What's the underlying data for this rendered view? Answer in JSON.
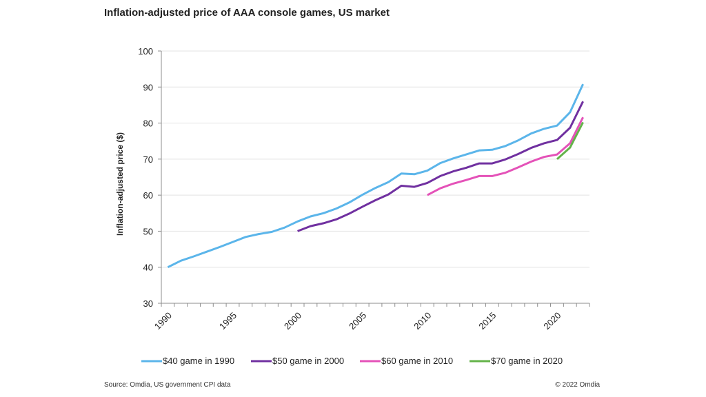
{
  "chart_data": {
    "type": "line",
    "title": "Inflation-adjusted price of AAA console games, US market",
    "ylabel": "Inflation-adjusted price ($)",
    "xlabel": "",
    "ylim": [
      30,
      100
    ],
    "yticks": [
      30,
      40,
      50,
      60,
      70,
      80,
      90,
      100
    ],
    "xlim": [
      1990,
      2022
    ],
    "xticks": [
      1990,
      1995,
      2000,
      2005,
      2010,
      2015,
      2020
    ],
    "grid": "horizontal",
    "legend": "bottom",
    "series": [
      {
        "name": "$40 game in 1990",
        "color": "#5bb5ea",
        "x": [
          1990,
          1991,
          1992,
          1993,
          1994,
          1995,
          1996,
          1997,
          1998,
          1999,
          2000,
          2001,
          2002,
          2003,
          2004,
          2005,
          2006,
          2007,
          2008,
          2009,
          2010,
          2011,
          2012,
          2013,
          2014,
          2015,
          2016,
          2017,
          2018,
          2019,
          2020,
          2021,
          2022
        ],
        "values": [
          40.0,
          41.8,
          43.0,
          44.3,
          45.6,
          47.0,
          48.4,
          49.2,
          49.8,
          51.0,
          52.7,
          54.1,
          55.0,
          56.3,
          58.0,
          60.1,
          62.0,
          63.6,
          66.0,
          65.8,
          66.8,
          68.9,
          70.2,
          71.3,
          72.4,
          72.6,
          73.6,
          75.2,
          77.1,
          78.4,
          79.3,
          83.0,
          90.8
        ]
      },
      {
        "name": "$50 game in 2000",
        "color": "#7030a0",
        "x": [
          2000,
          2001,
          2002,
          2003,
          2004,
          2005,
          2006,
          2007,
          2008,
          2009,
          2010,
          2011,
          2012,
          2013,
          2014,
          2015,
          2016,
          2017,
          2018,
          2019,
          2020,
          2021,
          2022
        ],
        "values": [
          50.0,
          51.4,
          52.2,
          53.3,
          54.9,
          56.8,
          58.6,
          60.2,
          62.6,
          62.3,
          63.4,
          65.3,
          66.6,
          67.6,
          68.8,
          68.8,
          69.9,
          71.4,
          73.1,
          74.4,
          75.3,
          78.7,
          86.0
        ]
      },
      {
        "name": "$60 game in 2010",
        "color": "#e452b8",
        "x": [
          2010,
          2011,
          2012,
          2013,
          2014,
          2015,
          2016,
          2017,
          2018,
          2019,
          2020,
          2021,
          2022
        ],
        "values": [
          60.0,
          61.9,
          63.2,
          64.2,
          65.3,
          65.3,
          66.2,
          67.7,
          69.3,
          70.6,
          71.3,
          74.4,
          81.6
        ]
      },
      {
        "name": "$70 game in 2020",
        "color": "#64b34a",
        "x": [
          2020,
          2021,
          2022
        ],
        "values": [
          70.0,
          73.2,
          80.2
        ]
      }
    ]
  },
  "footer": {
    "source": "Source: Omdia, US government CPI data",
    "copyright": "© 2022 Omdia"
  }
}
